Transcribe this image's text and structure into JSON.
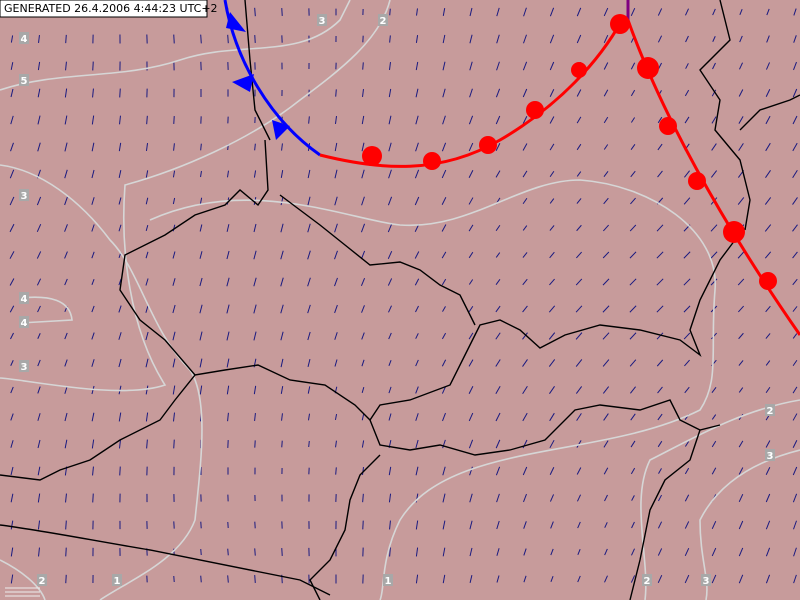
{
  "header": {
    "generated": "GENERATED 26.4.2006 4:44:23 UTC+2"
  },
  "contour_labels": [
    3,
    2,
    4,
    5,
    3,
    4,
    4,
    3,
    2,
    3,
    2,
    1,
    1,
    2,
    3
  ]
}
